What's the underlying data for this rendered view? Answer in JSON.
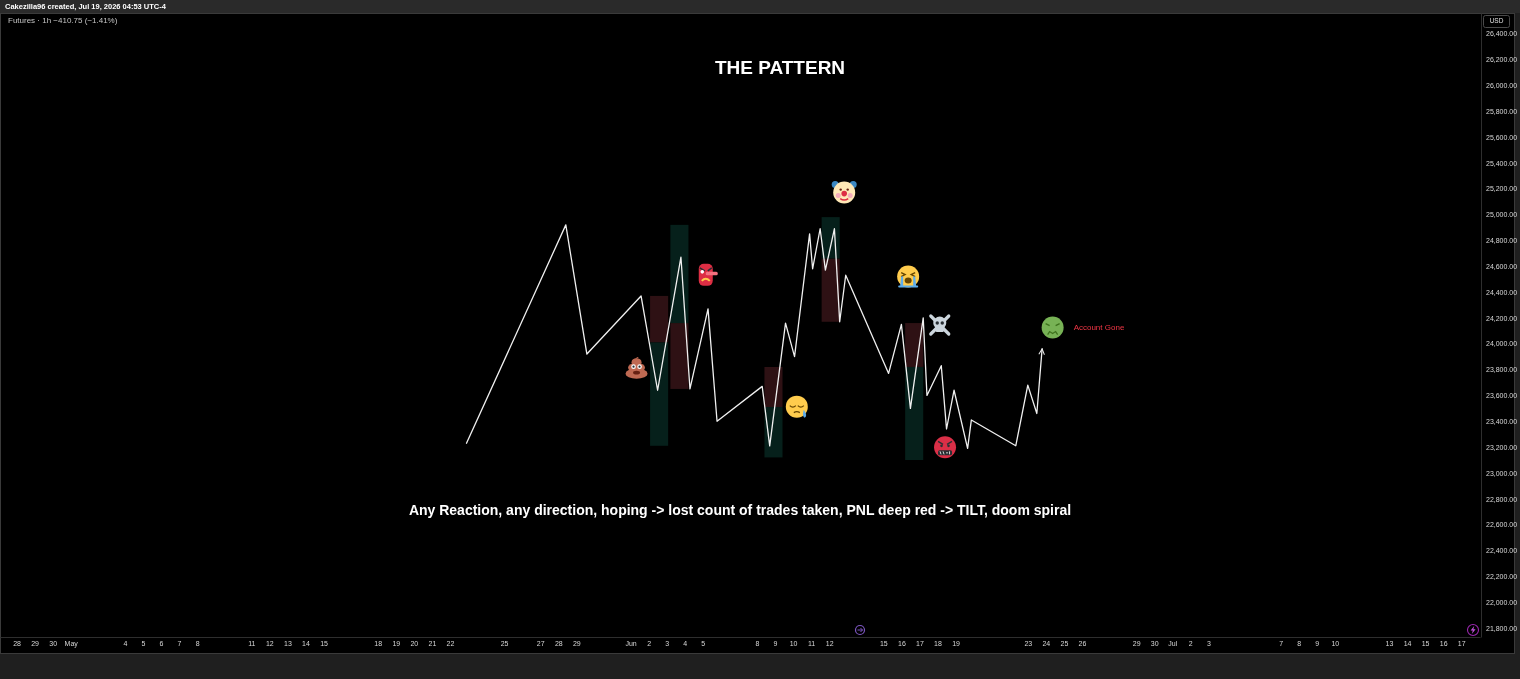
{
  "chart_data": {
    "type": "line",
    "title": "THE PATTERN",
    "subtitle": "Any Reaction, any direction, hoping -> lost count of trades taken, PNL deep red -> TILT, doom spiral",
    "ylabel": "USD",
    "annotations": [
      "Cakezilla96 created, Jul 19, 2026 04:53 UTC-4",
      "Futures · 1h  −410.75 (−1.41%)",
      "Account Gone"
    ],
    "xlim": [
      "2026-04-27T02:00",
      "2026-07-18T01:00"
    ],
    "xticks": [
      {
        "value": "2026-04-28",
        "label": "28"
      },
      {
        "value": "2026-04-29",
        "label": "29"
      },
      {
        "value": "2026-04-30",
        "label": "30"
      },
      {
        "value": "2026-05-01",
        "label": "May"
      },
      {
        "value": "2026-05-04",
        "label": "4"
      },
      {
        "value": "2026-05-05",
        "label": "5"
      },
      {
        "value": "2026-05-06",
        "label": "6"
      },
      {
        "value": "2026-05-07",
        "label": "7"
      },
      {
        "value": "2026-05-08",
        "label": "8"
      },
      {
        "value": "2026-05-11",
        "label": "11"
      },
      {
        "value": "2026-05-12",
        "label": "12"
      },
      {
        "value": "2026-05-13",
        "label": "13"
      },
      {
        "value": "2026-05-14",
        "label": "14"
      },
      {
        "value": "2026-05-15",
        "label": "15"
      },
      {
        "value": "2026-05-18",
        "label": "18"
      },
      {
        "value": "2026-05-19",
        "label": "19"
      },
      {
        "value": "2026-05-20",
        "label": "20"
      },
      {
        "value": "2026-05-21",
        "label": "21"
      },
      {
        "value": "2026-05-22",
        "label": "22"
      },
      {
        "value": "2026-05-25",
        "label": "25"
      },
      {
        "value": "2026-05-27",
        "label": "27"
      },
      {
        "value": "2026-05-28",
        "label": "28"
      },
      {
        "value": "2026-05-29",
        "label": "29"
      },
      {
        "value": "2026-06-01",
        "label": "Jun"
      },
      {
        "value": "2026-06-02",
        "label": "2"
      },
      {
        "value": "2026-06-03",
        "label": "3"
      },
      {
        "value": "2026-06-04",
        "label": "4"
      },
      {
        "value": "2026-06-05",
        "label": "5"
      },
      {
        "value": "2026-06-08",
        "label": "8"
      },
      {
        "value": "2026-06-09",
        "label": "9"
      },
      {
        "value": "2026-06-10",
        "label": "10"
      },
      {
        "value": "2026-06-11",
        "label": "11"
      },
      {
        "value": "2026-06-12",
        "label": "12"
      },
      {
        "value": "2026-06-15",
        "label": "15"
      },
      {
        "value": "2026-06-16",
        "label": "16"
      },
      {
        "value": "2026-06-17",
        "label": "17"
      },
      {
        "value": "2026-06-18",
        "label": "18"
      },
      {
        "value": "2026-06-19",
        "label": "19"
      },
      {
        "value": "2026-06-23",
        "label": "23"
      },
      {
        "value": "2026-06-24",
        "label": "24"
      },
      {
        "value": "2026-06-25",
        "label": "25"
      },
      {
        "value": "2026-06-26",
        "label": "26"
      },
      {
        "value": "2026-06-29",
        "label": "29"
      },
      {
        "value": "2026-06-30",
        "label": "30"
      },
      {
        "value": "2026-07-01",
        "label": "Jul"
      },
      {
        "value": "2026-07-02",
        "label": "2"
      },
      {
        "value": "2026-07-03",
        "label": "3"
      },
      {
        "value": "2026-07-07",
        "label": "7"
      },
      {
        "value": "2026-07-08",
        "label": "8"
      },
      {
        "value": "2026-07-09",
        "label": "9"
      },
      {
        "value": "2026-07-10",
        "label": "10"
      },
      {
        "value": "2026-07-13",
        "label": "13"
      },
      {
        "value": "2026-07-14",
        "label": "14"
      },
      {
        "value": "2026-07-15",
        "label": "15"
      },
      {
        "value": "2026-07-16",
        "label": "16"
      },
      {
        "value": "2026-07-17",
        "label": "17"
      }
    ],
    "ylim": [
      21730,
      26560
    ],
    "yticks": [
      {
        "value": 21800,
        "label": "21,800.00"
      },
      {
        "value": 22000,
        "label": "22,000.00"
      },
      {
        "value": 22200,
        "label": "22,200.00"
      },
      {
        "value": 22400,
        "label": "22,400.00"
      },
      {
        "value": 22600,
        "label": "22,600.00"
      },
      {
        "value": 22800,
        "label": "22,800.00"
      },
      {
        "value": 23000,
        "label": "23,000.00"
      },
      {
        "value": 23200,
        "label": "23,200.00"
      },
      {
        "value": 23400,
        "label": "23,400.00"
      },
      {
        "value": 23600,
        "label": "23,600.00"
      },
      {
        "value": 23800,
        "label": "23,800.00"
      },
      {
        "value": 24000,
        "label": "24,000.00"
      },
      {
        "value": 24200,
        "label": "24,200.00"
      },
      {
        "value": 24400,
        "label": "24,400.00"
      },
      {
        "value": 24600,
        "label": "24,600.00"
      },
      {
        "value": 24800,
        "label": "24,800.00"
      },
      {
        "value": 25000,
        "label": "25,000.00"
      },
      {
        "value": 25200,
        "label": "25,200.00"
      },
      {
        "value": 25400,
        "label": "25,400.00"
      },
      {
        "value": 25600,
        "label": "25,600.00"
      },
      {
        "value": 25800,
        "label": "25,800.00"
      },
      {
        "value": 26000,
        "label": "26,000.00"
      },
      {
        "value": 26200,
        "label": "26,200.00"
      },
      {
        "value": 26400,
        "label": "26,400.00"
      }
    ],
    "series": [
      {
        "type": "bar",
        "color": "#2e1114",
        "x": [
          "2026-06-02T14:00",
          "2026-06-03T17:00",
          "2026-06-08T22:00",
          "2026-06-12T02:00",
          "2026-06-16T17:00"
        ],
        "base": [
          24010,
          23650,
          23510,
          24170,
          23820
        ],
        "values": [
          360,
          510,
          310,
          490,
          340
        ]
      },
      {
        "type": "bar",
        "color": "#06201b",
        "x": [
          "2026-06-02T14:00",
          "2026-06-03T17:00",
          "2026-06-08T22:00",
          "2026-06-12T02:00",
          "2026-06-16T17:00"
        ],
        "base": [
          23210,
          24160,
          23120,
          24660,
          23100
        ],
        "values": [
          800,
          760,
          390,
          320,
          720
        ]
      },
      {
        "color": "#f0f0f0",
        "line_style": "solid",
        "x": [
          "2026-05-22T22:00",
          "2026-05-28T10:00",
          "2026-05-29T14:00",
          "2026-06-01T14:00",
          "2026-06-02T12:00",
          "2026-06-03T19:00",
          "2026-06-04T07:00",
          "2026-06-05T07:00",
          "2026-06-05T19:00",
          "2026-06-08T07:00",
          "2026-06-08T17:00",
          "2026-06-09T14:00",
          "2026-06-10T02:00",
          "2026-06-10T22:00",
          "2026-06-11T02:00",
          "2026-06-11T12:00",
          "2026-06-11T19:00",
          "2026-06-12T07:00",
          "2026-06-12T14:00",
          "2026-06-12T22:00",
          "2026-06-15T07:00",
          "2026-06-16T00:00",
          "2026-06-16T12:00",
          "2026-06-17T05:00",
          "2026-06-17T10:00",
          "2026-06-18T05:00",
          "2026-06-18T12:00",
          "2026-06-18T22:00",
          "2026-06-19T16:00",
          "2026-06-19T21:00",
          "2026-06-22T08:00",
          "2026-06-23T00:00",
          "2026-06-23T12:00",
          "2026-06-23T19:00"
        ],
        "values": [
          23230,
          24920,
          23920,
          24370,
          23640,
          24670,
          23650,
          24270,
          23400,
          23670,
          23210,
          24160,
          23900,
          24850,
          24580,
          24890,
          24570,
          24890,
          24170,
          24530,
          23770,
          24150,
          23500,
          24200,
          23600,
          23830,
          23340,
          23640,
          23190,
          23410,
          23210,
          23680,
          23460,
          23960
        ]
      }
    ]
  }
}
